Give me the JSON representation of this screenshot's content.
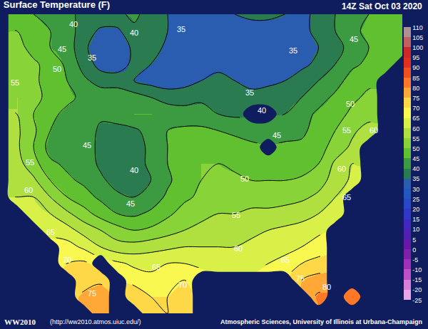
{
  "chart_data": {
    "type": "contour",
    "title": "Surface Temperature (F)",
    "subtitle": "14Z Sat Oct 03 2020",
    "annotations": [
      "WW2010",
      "(http://ww2010.atmos.uiuc.edu/)",
      "Atmospheric Sciences, University of Illinois at Urbana-Champaign"
    ],
    "tick_labels": false,
    "temperature_grid": [
      [
        null,
        46,
        45,
        43,
        41,
        39,
        39,
        39,
        41,
        38,
        35,
        33,
        33,
        34,
        35,
        36,
        36,
        35,
        34,
        36,
        40,
        43,
        45,
        46,
        47
      ],
      [
        null,
        50,
        47,
        45,
        42,
        38,
        34,
        34,
        39,
        37,
        35,
        33,
        32,
        32,
        33,
        33,
        33,
        34,
        34,
        36,
        40,
        44,
        46,
        47,
        47
      ],
      [
        null,
        52,
        48,
        45,
        43,
        36,
        32,
        32,
        36,
        37,
        34,
        33,
        32,
        32,
        33,
        33,
        32,
        33,
        34,
        35,
        38,
        42,
        45,
        46,
        47
      ],
      [
        null,
        53,
        51,
        48,
        44,
        38,
        33,
        33,
        36,
        35,
        33,
        32,
        33,
        34,
        34,
        34,
        33,
        33,
        34,
        36,
        40,
        44,
        46,
        47,
        null
      ],
      [
        null,
        54,
        51,
        48,
        45,
        41,
        38,
        37,
        35,
        33,
        32,
        33,
        35,
        36,
        35,
        34,
        34,
        35,
        37,
        40,
        43,
        47,
        49,
        null,
        null
      ],
      [
        null,
        55,
        52,
        48,
        46,
        44,
        43,
        44,
        42,
        40,
        38,
        38,
        39,
        38,
        37,
        36,
        37,
        38,
        40,
        43,
        46,
        49,
        51,
        null,
        null
      ],
      [
        null,
        55,
        50,
        46,
        44,
        43,
        41,
        43,
        45,
        45,
        43,
        42,
        42,
        40,
        39,
        null,
        null,
        40,
        43,
        46,
        48,
        51,
        53,
        null,
        null
      ],
      [
        null,
        56,
        51,
        45,
        42,
        43,
        39,
        38,
        39,
        42,
        45,
        46,
        46,
        45,
        44,
        43,
        42,
        43,
        44,
        47,
        50,
        54,
        57,
        null,
        null
      ],
      [
        null,
        56,
        50,
        43,
        41,
        44,
        38,
        37,
        38,
        41,
        45,
        47,
        48,
        48,
        47,
        46,
        null,
        46,
        46,
        48,
        52,
        56,
        null,
        null,
        null
      ],
      [
        null,
        57,
        52,
        46,
        44,
        43,
        39,
        37,
        38,
        41,
        45,
        48,
        50,
        50,
        49,
        48,
        48,
        47,
        47,
        50,
        56,
        60,
        null,
        null,
        null
      ],
      [
        null,
        58,
        56,
        50,
        46,
        44,
        41,
        38,
        37,
        40,
        44,
        48,
        50,
        51,
        51,
        50,
        50,
        50,
        51,
        53,
        57,
        61,
        null,
        null,
        null
      ],
      [
        null,
        60,
        60,
        55,
        50,
        47,
        44,
        41,
        40,
        42,
        46,
        49,
        51,
        53,
        53,
        53,
        53,
        53,
        54,
        56,
        60,
        null,
        null,
        null,
        null
      ],
      [
        null,
        null,
        62,
        60,
        56,
        52,
        48,
        45,
        44,
        46,
        49,
        52,
        54,
        55,
        55,
        56,
        56,
        57,
        58,
        60,
        63,
        null,
        null,
        null,
        null
      ],
      [
        null,
        null,
        null,
        64,
        62,
        58,
        55,
        52,
        50,
        51,
        53,
        55,
        56,
        57,
        57,
        59,
        60,
        61,
        62,
        64,
        null,
        null,
        null,
        null,
        null
      ],
      [
        null,
        null,
        null,
        null,
        67,
        64,
        60,
        57,
        57,
        58,
        59,
        60,
        60,
        60,
        60,
        61,
        63,
        64,
        65,
        67,
        null,
        null,
        null,
        null,
        null
      ],
      [
        null,
        null,
        null,
        null,
        70,
        71,
        null,
        66,
        64,
        64,
        65,
        65,
        64,
        63,
        63,
        63,
        65,
        66,
        70,
        72,
        null,
        null,
        null,
        null,
        null
      ],
      [
        null,
        null,
        null,
        null,
        null,
        73,
        74,
        null,
        68,
        66,
        68,
        70,
        null,
        null,
        null,
        null,
        null,
        null,
        75,
        77,
        null,
        null,
        null,
        null,
        null
      ],
      [
        null,
        null,
        null,
        null,
        null,
        76,
        78,
        null,
        74,
        70,
        70,
        72,
        null,
        null,
        null,
        null,
        null,
        null,
        null,
        81,
        null,
        85,
        null,
        null,
        null
      ],
      [
        null,
        null,
        null,
        null,
        null,
        null,
        78,
        null,
        null,
        72,
        70,
        71,
        null,
        null,
        null,
        null,
        null,
        null,
        null,
        null,
        null,
        null,
        null,
        null,
        null
      ]
    ],
    "contour_labels": [
      {
        "value": 40,
        "at": [
          4.4,
          0.6
        ]
      },
      {
        "value": 40,
        "at": [
          8.0,
          1.1
        ]
      },
      {
        "value": 35,
        "at": [
          10.8,
          0.9
        ]
      },
      {
        "value": 45,
        "at": [
          21.1,
          1.5
        ]
      },
      {
        "value": 45,
        "at": [
          3.7,
          2.1
        ]
      },
      {
        "value": 35,
        "at": [
          5.5,
          2.6
        ]
      },
      {
        "value": 35,
        "at": [
          17.5,
          2.2
        ]
      },
      {
        "value": 50,
        "at": [
          3.4,
          3.3
        ]
      },
      {
        "value": 55,
        "at": [
          0.9,
          4.1
        ]
      },
      {
        "value": 35,
        "at": [
          14.9,
          4.7
        ]
      },
      {
        "value": 50,
        "at": [
          20.9,
          5.4
        ]
      },
      {
        "value": 40,
        "at": [
          15.6,
          5.8
        ]
      },
      {
        "value": 55,
        "at": [
          20.7,
          7.0
        ]
      },
      {
        "value": 60,
        "at": [
          22.3,
          7.0
        ]
      },
      {
        "value": 45,
        "at": [
          16.5,
          7.3
        ]
      },
      {
        "value": 45,
        "at": [
          5.2,
          7.9
        ]
      },
      {
        "value": 55,
        "at": [
          1.8,
          8.9
        ]
      },
      {
        "value": 40,
        "at": [
          8.0,
          9.4
        ]
      },
      {
        "value": 60,
        "at": [
          20.4,
          9.3
        ]
      },
      {
        "value": 50,
        "at": [
          14.6,
          9.9
        ]
      },
      {
        "value": 60,
        "at": [
          1.7,
          10.6
        ]
      },
      {
        "value": 65,
        "at": [
          20.7,
          11.0
        ]
      },
      {
        "value": 45,
        "at": [
          7.8,
          11.4
        ]
      },
      {
        "value": 55,
        "at": [
          14.1,
          12.1
        ]
      },
      {
        "value": 65,
        "at": [
          3.0,
          13.1
        ]
      },
      {
        "value": 60,
        "at": [
          14.2,
          14.1
        ]
      },
      {
        "value": 70,
        "at": [
          4.0,
          14.8
        ]
      },
      {
        "value": 65,
        "at": [
          17.0,
          14.8
        ]
      },
      {
        "value": 65,
        "at": [
          9.3,
          15.2
        ]
      },
      {
        "value": 75,
        "at": [
          17.9,
          15.9
        ]
      },
      {
        "value": 70,
        "at": [
          10.9,
          16.3
        ]
      },
      {
        "value": 80,
        "at": [
          19.5,
          16.4
        ]
      },
      {
        "value": 75,
        "at": [
          5.5,
          16.8
        ]
      }
    ],
    "colorbar": {
      "range": [
        -25,
        110
      ],
      "ticks": [
        -25,
        -20,
        -15,
        -10,
        -5,
        0,
        5,
        10,
        15,
        20,
        25,
        30,
        35,
        40,
        45,
        50,
        55,
        60,
        65,
        70,
        75,
        80,
        85,
        90,
        95,
        100,
        105,
        110
      ],
      "colors": [
        "#e8a8e8",
        "#d880d8",
        "#c050c8",
        "#a030b8",
        "#8020a8",
        "#6818a8",
        "#5020b0",
        "#4028c0",
        "#3038c8",
        "#2848c8",
        "#2058c0",
        "#2a5cb0",
        "#2b7b50",
        "#3c9a40",
        "#60c030",
        "#88d438",
        "#b0e040",
        "#d8f048",
        "#f8f850",
        "#ffd848",
        "#ffa838",
        "#ff7828",
        "#f05020",
        "#e03020",
        "#d02828",
        "#c06060",
        "#b09090"
      ]
    }
  }
}
